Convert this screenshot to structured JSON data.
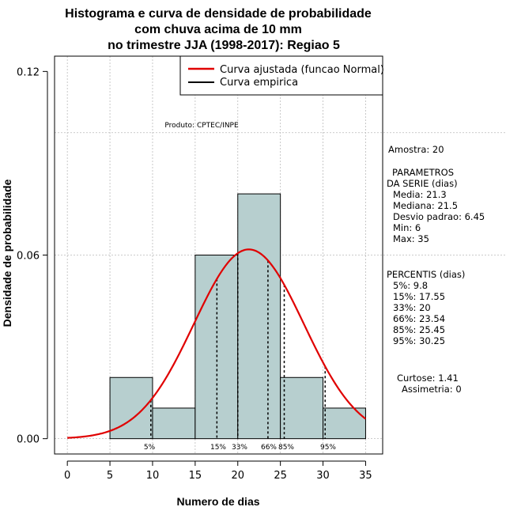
{
  "chart_data": {
    "type": "histogram",
    "title": [
      "Histograma e curva de densidade de probabilidade",
      "com chuva acima de 10 mm",
      "no trimestre JJA (1998-2017): Regiao 5"
    ],
    "xlabel": "Numero de dias",
    "ylabel": "Densidade de probabilidade",
    "xlim": [
      -1.5,
      37
    ],
    "ylim": [
      -0.005,
      0.125
    ],
    "x_ticks": [
      0,
      5,
      10,
      15,
      20,
      25,
      30,
      35
    ],
    "x_tick_labels": [
      "0",
      "5",
      "10",
      "15",
      "20",
      "25",
      "30",
      "35"
    ],
    "y_ticks": [
      0.0,
      0.06,
      0.12
    ],
    "y_tick_labels": [
      "0.00",
      "0.06",
      "0.12"
    ],
    "grid_y": [
      0.06,
      0.1
    ],
    "bins": [
      {
        "start": 5,
        "end": 10,
        "density": 0.02
      },
      {
        "start": 10,
        "end": 15,
        "density": 0.01
      },
      {
        "start": 15,
        "end": 20,
        "density": 0.06
      },
      {
        "start": 20,
        "end": 25,
        "density": 0.08
      },
      {
        "start": 25,
        "end": 30,
        "density": 0.02
      },
      {
        "start": 30,
        "end": 35,
        "density": 0.01
      }
    ],
    "normal_fit": {
      "mean": 21.3,
      "sd": 6.45,
      "x_from": 0,
      "x_to": 35
    },
    "percentile_lines": [
      {
        "label": "5%",
        "value": 9.8
      },
      {
        "label": "15%",
        "value": 17.55
      },
      {
        "label": "33%",
        "value": 20
      },
      {
        "label": "66%",
        "value": 23.54
      },
      {
        "label": "85%",
        "value": 25.45
      },
      {
        "label": "95%",
        "value": 30.25
      }
    ],
    "legend": [
      {
        "label": "Curva ajustada (funcao Normal)",
        "color": "#e00000"
      },
      {
        "label": "Curva empirica",
        "color": "#000000"
      }
    ],
    "annotation": "Produto: CPTEC/INPE",
    "colors": {
      "bar_fill": "#b7cfcf",
      "curve": "#e00000",
      "grid": "#bbbbbb"
    }
  },
  "sidebar": {
    "sample": "Amostra: 20",
    "params_header": [
      "PARAMETROS",
      "DA SERIE (dias)"
    ],
    "params": [
      "Media: 21.3",
      "Mediana: 21.5",
      "Desvio padrao: 6.45",
      "Min: 6",
      "Max: 35"
    ],
    "percentis_header": "PERCENTIS (dias)",
    "percentis": [
      "5%: 9.8",
      "15%: 17.55",
      "33%: 20",
      "66%: 23.54",
      "85%: 25.45",
      "95%: 30.25"
    ],
    "shape": [
      "Curtose: 1.41",
      "Assimetria: 0"
    ]
  }
}
